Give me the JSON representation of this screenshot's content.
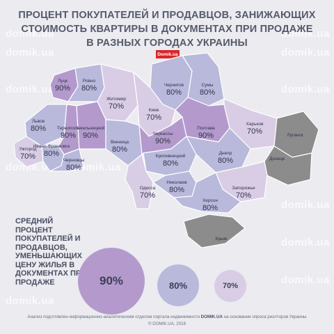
{
  "title": {
    "line1": "ПРОЦЕНТ ПОКУПАТЕЛЕЙ И ПРОДАВЦОВ, ЗАНИЖАЮЩИХ",
    "line2": "СТОИМОСТЬ КВАРТИРЫ В ДОКУМЕНТАХ ПРИ ПРОДАЖЕ",
    "line3": "В РАЗНЫХ ГОРОДАХ УКРАИНЫ"
  },
  "logo": "Domik.ua",
  "watermark": "domik.ua",
  "colors": {
    "p90": "#b49acc",
    "p80": "#b9b9dc",
    "p70": "#d9cde6",
    "noData": "#8c8c8c",
    "text": "#2f3348"
  },
  "regions": [
    {
      "name": "Луцк",
      "value": "90%",
      "level": 90
    },
    {
      "name": "Ровно",
      "value": "80%",
      "level": 80
    },
    {
      "name": "Житомир",
      "value": "70%",
      "level": 70
    },
    {
      "name": "Чернигов",
      "value": "80%",
      "level": 80
    },
    {
      "name": "Сумы",
      "value": "80%",
      "level": 80
    },
    {
      "name": "Киев",
      "value": "70%",
      "level": 70
    },
    {
      "name": "Львов",
      "value": "80%",
      "level": 80
    },
    {
      "name": "Тернополь",
      "value": "90%",
      "level": 90
    },
    {
      "name": "Хмельницкий",
      "value": "90%",
      "level": 90
    },
    {
      "name": "Винница",
      "value": "80%",
      "level": 80
    },
    {
      "name": "Черкассы",
      "value": "90%",
      "level": 90
    },
    {
      "name": "Полтава",
      "value": "90%",
      "level": 90
    },
    {
      "name": "Харьков",
      "value": "70%",
      "level": 70
    },
    {
      "name": "Луганск",
      "value": "",
      "level": 0
    },
    {
      "name": "Ужгород",
      "value": "70%",
      "level": 70
    },
    {
      "name": "Ивано-Франковск",
      "value": "80%",
      "level": 80
    },
    {
      "name": "Черновцы",
      "value": "80%",
      "level": 80
    },
    {
      "name": "Кропивницкий",
      "value": "80%",
      "level": 80
    },
    {
      "name": "Днепр",
      "value": "80%",
      "level": 80
    },
    {
      "name": "Донецк",
      "value": "",
      "level": 0
    },
    {
      "name": "Одесса",
      "value": "70%",
      "level": 70
    },
    {
      "name": "Николаев",
      "value": "80%",
      "level": 80
    },
    {
      "name": "Запорожье",
      "value": "70%",
      "level": 70
    },
    {
      "name": "Херсон",
      "value": "80%",
      "level": 80
    },
    {
      "name": "Крым",
      "value": "",
      "level": 0
    }
  ],
  "legend": {
    "text": "СРЕДНИЙ ПРОЦЕНТ ПОКУПАТЕЛЕЙ И ПРОДАВЦОВ, УМЕНЬШАЮЩИХ ЦЕНУ ЖИЛЬЯ В ДОКУМЕНТАХ ПРИ ПРОДАЖЕ",
    "items": [
      {
        "label": "90%",
        "level": 90
      },
      {
        "label": "80%",
        "level": 80
      },
      {
        "label": "70%",
        "level": 70
      }
    ]
  },
  "footer": {
    "line1_a": "Анализ подготовлен информационно-аналитическим отделом портала недвижимости",
    "line1_brand": "DOMIK.UA",
    "line1_b": "на основании опроса риэлторов Украины",
    "line2": "© DOMIK.UA, 2018"
  }
}
